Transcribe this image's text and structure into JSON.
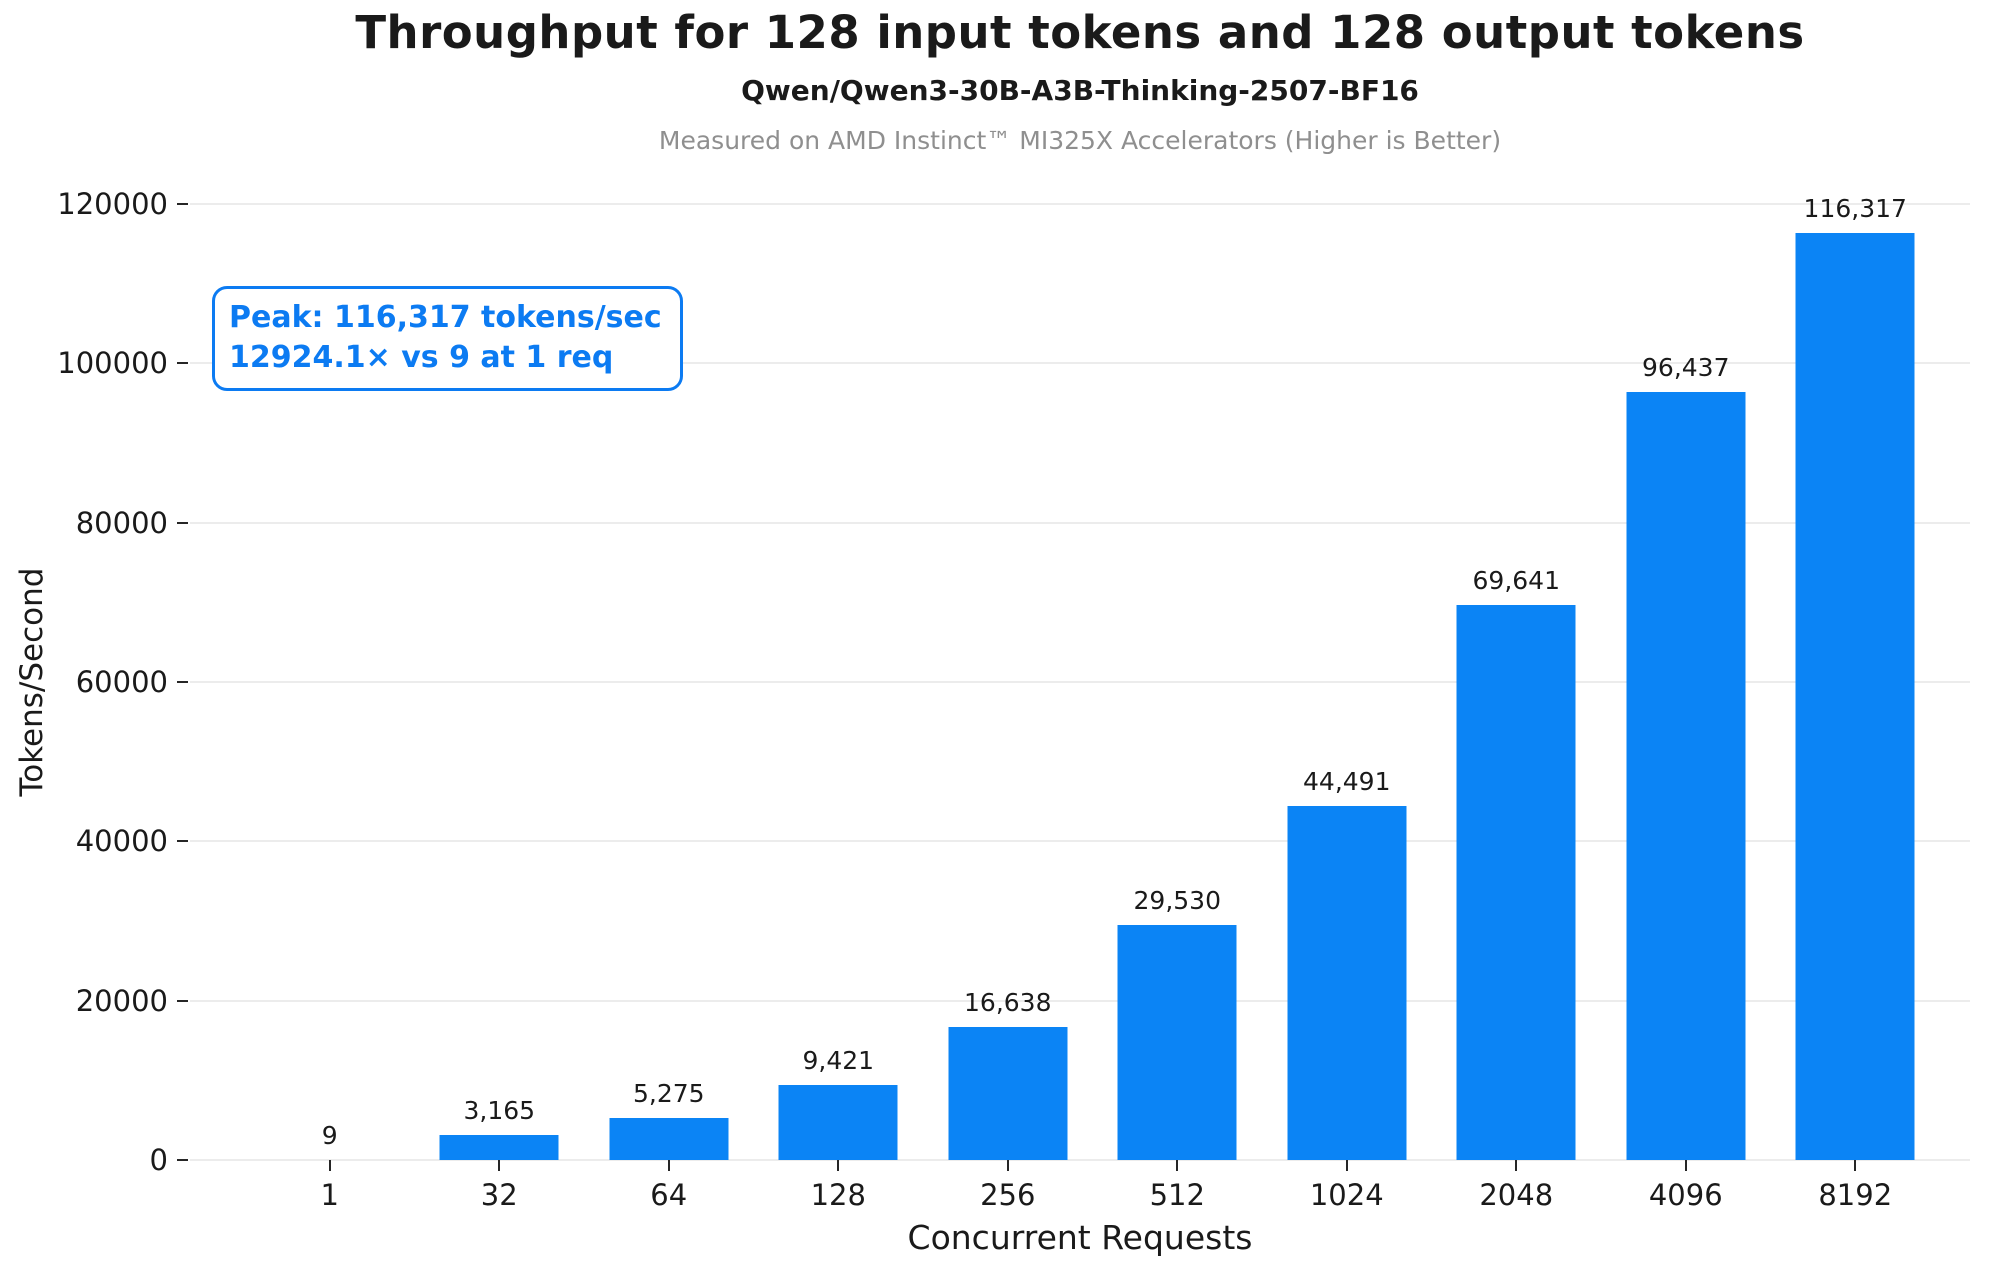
{
  "header": {
    "title": "Throughput for 128 input tokens and 128 output tokens",
    "subtitle": "Qwen/Qwen3-30B-A3B-Thinking-2507-BF16",
    "caption": "Measured on AMD Instinct™ MI325X Accelerators (Higher is Better)"
  },
  "annotation": {
    "line1": "Peak: 116,317 tokens/sec",
    "line2": "12924.1× vs 9 at 1 req"
  },
  "chart_data": {
    "type": "bar",
    "title": "Throughput for 128 input tokens and 128 output tokens",
    "subtitle": "Qwen/Qwen3-30B-A3B-Thinking-2507-BF16",
    "xlabel": "Concurrent Requests",
    "ylabel": "Tokens/Second",
    "categories": [
      "1",
      "32",
      "64",
      "128",
      "256",
      "512",
      "1024",
      "2048",
      "4096",
      "8192"
    ],
    "values": [
      9,
      3165,
      5275,
      9421,
      16638,
      29530,
      44491,
      69641,
      96437,
      116317
    ],
    "value_labels": [
      "9",
      "3,165",
      "5,275",
      "9,421",
      "16,638",
      "29,530",
      "44,491",
      "69,641",
      "96,437",
      "116,317"
    ],
    "ylim": [
      0,
      120000
    ],
    "y_ticks": [
      0,
      20000,
      40000,
      60000,
      80000,
      100000,
      120000
    ],
    "y_tick_labels": [
      "0",
      "20000",
      "40000",
      "60000",
      "80000",
      "100000",
      "120000"
    ],
    "grid": true,
    "legend_position": "none",
    "annotation": "Peak: 116,317 tokens/sec — 12924.1× vs 9 at 1 req"
  },
  "colors": {
    "bar": "#0b84f5",
    "accent_blue": "#0c7bf2",
    "grid": "#ececec",
    "tick": "#262626",
    "text": "#1a1a1a",
    "caption_gray": "#8f8f8f"
  }
}
